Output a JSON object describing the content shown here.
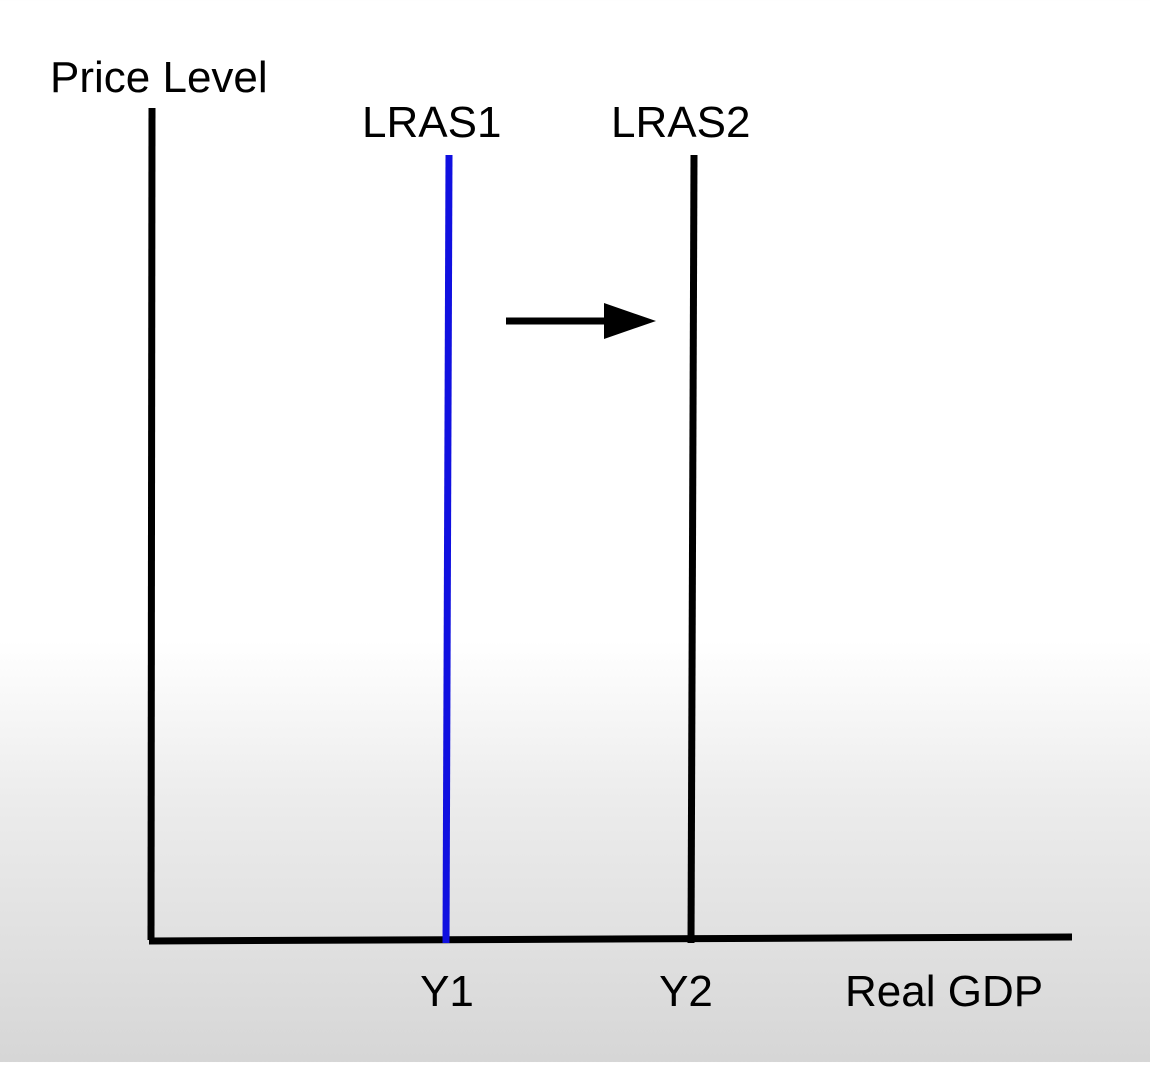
{
  "diagram": {
    "y_axis_label": "Price Level",
    "x_axis_label": "Real GDP",
    "curves": [
      {
        "name": "LRAS1",
        "x_label": "Y1",
        "color": "#1010e0"
      },
      {
        "name": "LRAS2",
        "x_label": "Y2",
        "color": "#000000"
      }
    ],
    "shift_arrow": {
      "direction": "right",
      "icon": "right-arrow-icon",
      "color": "#000000"
    },
    "axis_color": "#000000"
  }
}
